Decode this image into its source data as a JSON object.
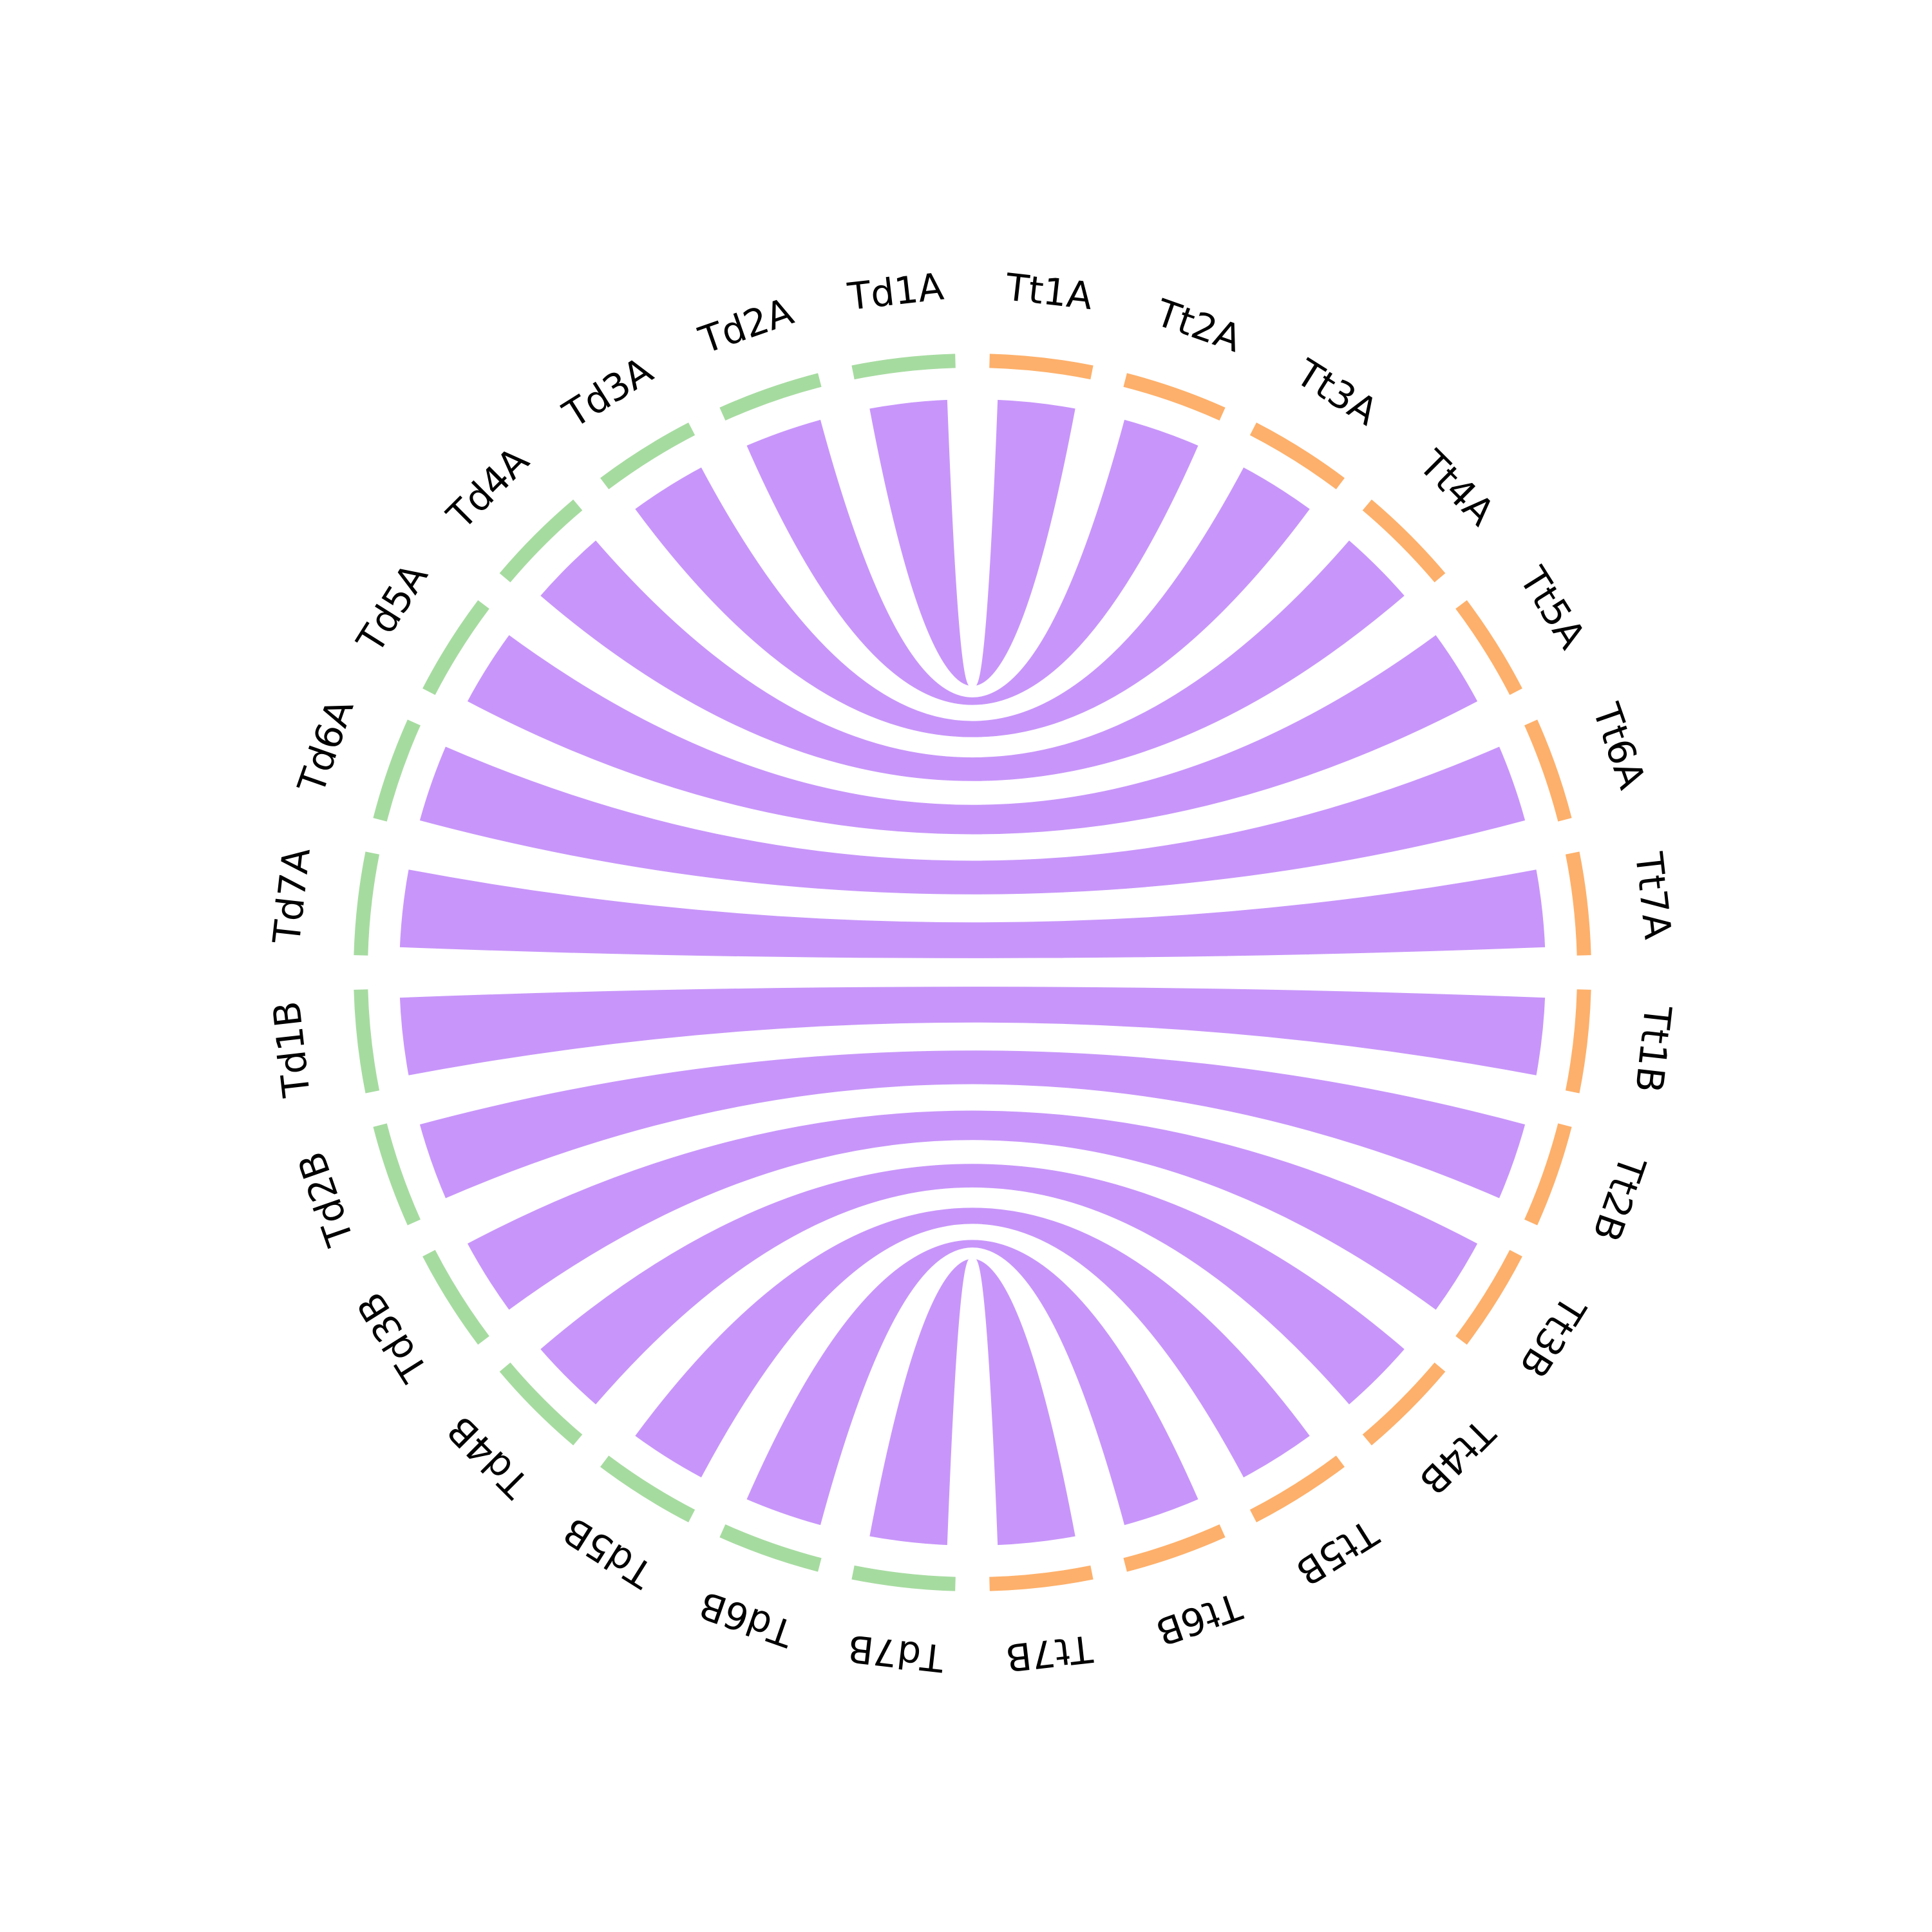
{
  "diagram": {
    "type": "chord",
    "ribbon_color": "#c896fa",
    "groups": [
      {
        "name": "Td",
        "color": "#a6dba0"
      },
      {
        "name": "Tt",
        "color": "#fdb06b"
      }
    ],
    "segments_left": [
      "Td1A",
      "Td2A",
      "Td3A",
      "Td4A",
      "Td5A",
      "Td6A",
      "Td7A",
      "Td1B",
      "Td2B",
      "Td3B",
      "Td4B",
      "Td5B",
      "Td6B",
      "Td7B"
    ],
    "segments_right": [
      "Tt1A",
      "Tt2A",
      "Tt3A",
      "Tt4A",
      "Tt5A",
      "Tt6A",
      "Tt7A",
      "Tt1B",
      "Tt2B",
      "Tt3B",
      "Tt4B",
      "Tt5B",
      "Tt6B",
      "Tt7B"
    ],
    "links": [
      {
        "from": "Td1A",
        "to": "Tt1A"
      },
      {
        "from": "Td2A",
        "to": "Tt2A"
      },
      {
        "from": "Td3A",
        "to": "Tt3A"
      },
      {
        "from": "Td4A",
        "to": "Tt4A"
      },
      {
        "from": "Td5A",
        "to": "Tt5A"
      },
      {
        "from": "Td6A",
        "to": "Tt6A"
      },
      {
        "from": "Td7A",
        "to": "Tt7A"
      },
      {
        "from": "Td1B",
        "to": "Tt1B"
      },
      {
        "from": "Td2B",
        "to": "Tt2B"
      },
      {
        "from": "Td3B",
        "to": "Tt3B"
      },
      {
        "from": "Td4B",
        "to": "Tt4B"
      },
      {
        "from": "Td5B",
        "to": "Tt5B"
      },
      {
        "from": "Td6B",
        "to": "Tt6B"
      },
      {
        "from": "Td7B",
        "to": "Tt7B"
      }
    ]
  }
}
